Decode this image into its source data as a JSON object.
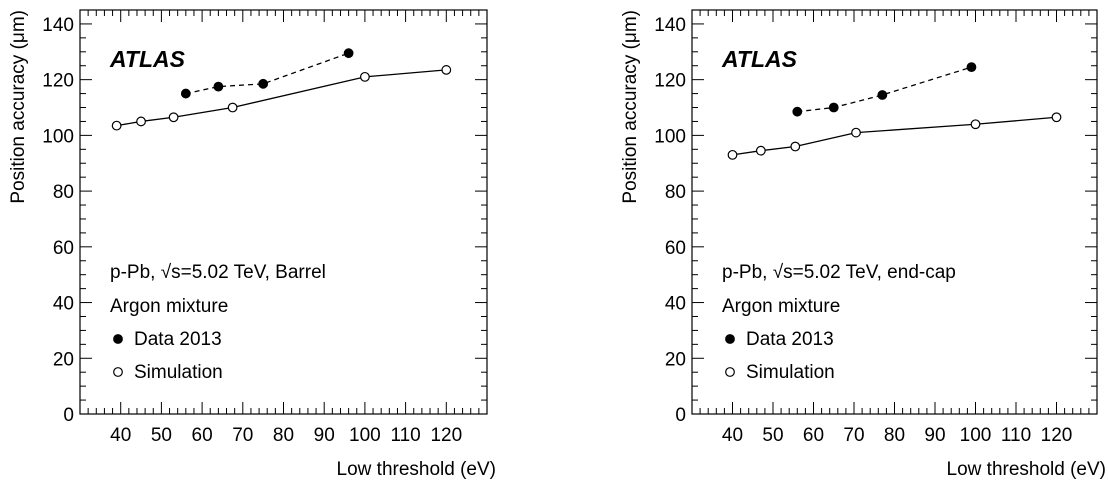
{
  "chart_data": [
    {
      "type": "line",
      "experiment": "ATLAS",
      "xlabel": "Low threshold (eV)",
      "ylabel": "Position accuracy (μm)",
      "xlim": [
        30,
        130
      ],
      "ylim": [
        0,
        145
      ],
      "xticks": [
        40,
        50,
        60,
        70,
        80,
        90,
        100,
        110,
        120
      ],
      "yticks": [
        0,
        20,
        40,
        60,
        80,
        100,
        120,
        140
      ],
      "legend_placement": "bottom-left",
      "text_lines": [
        "p-Pb, √s=5.02 TeV, Barrel",
        "Argon mixture"
      ],
      "series": [
        {
          "name": "Data 2013",
          "marker": "filled-circle",
          "line": "dashed",
          "x": [
            56,
            64,
            75,
            96
          ],
          "y": [
            115,
            117.5,
            118.5,
            129.5
          ]
        },
        {
          "name": "Simulation",
          "marker": "open-circle",
          "line": "solid",
          "x": [
            39,
            45,
            53,
            67.5,
            100,
            120
          ],
          "y": [
            103.5,
            105,
            106.5,
            110,
            121,
            123.5
          ]
        }
      ]
    },
    {
      "type": "line",
      "experiment": "ATLAS",
      "xlabel": "Low threshold (eV)",
      "ylabel": "Position accuracy (μm)",
      "xlim": [
        30,
        130
      ],
      "ylim": [
        0,
        145
      ],
      "xticks": [
        40,
        50,
        60,
        70,
        80,
        90,
        100,
        110,
        120
      ],
      "yticks": [
        0,
        20,
        40,
        60,
        80,
        100,
        120,
        140
      ],
      "legend_placement": "bottom-left",
      "text_lines": [
        "p-Pb, √s=5.02 TeV, end-cap",
        "Argon mixture"
      ],
      "series": [
        {
          "name": "Data 2013",
          "marker": "filled-circle",
          "line": "dashed",
          "x": [
            56,
            65,
            77,
            99
          ],
          "y": [
            108.5,
            110,
            114.5,
            124.5
          ]
        },
        {
          "name": "Simulation",
          "marker": "open-circle",
          "line": "solid",
          "x": [
            40,
            47,
            55.5,
            70.5,
            100,
            120
          ],
          "y": [
            93,
            94.5,
            96,
            101,
            104,
            106.5
          ]
        }
      ]
    }
  ]
}
